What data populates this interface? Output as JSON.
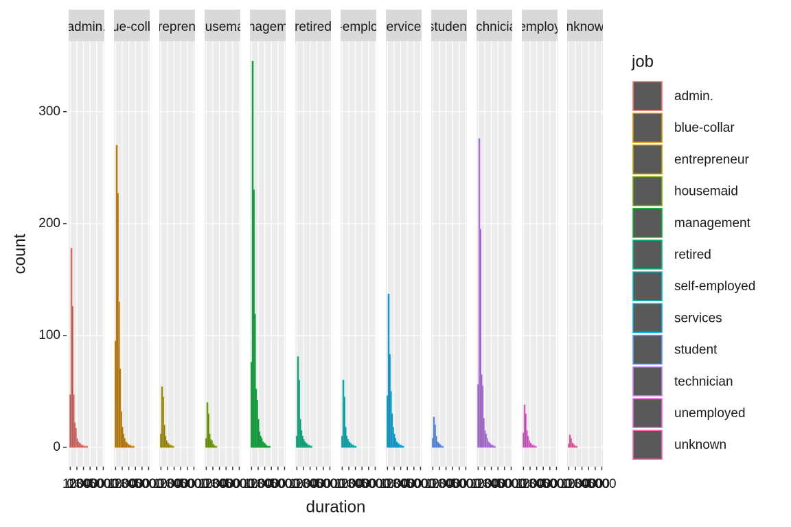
{
  "chart_data": {
    "type": "histogram",
    "x_label": "duration",
    "y_label": "count",
    "legend_title": "job",
    "bins": [
      -85,
      85,
      255,
      425,
      595,
      765,
      935,
      1105,
      1275,
      1445,
      1615,
      1785,
      1955,
      2125,
      2295,
      2465,
      2635,
      2805,
      2975,
      3145,
      3315,
      3485,
      3655,
      3825,
      3995,
      4165,
      4335,
      4505,
      4675,
      4845,
      5015
    ],
    "xlim": [
      -245,
      5163
    ],
    "xticks": [
      0,
      1000,
      2000,
      3000,
      4000,
      5000
    ],
    "ylim": [
      -17.2,
      363
    ],
    "yticks": [
      0,
      100,
      200,
      300
    ],
    "fill": "#595959",
    "grid": true,
    "legend_position": "right",
    "series": [
      {
        "name": "admin.",
        "color": "#F8766D",
        "values": [
          47,
          178,
          126,
          47,
          22,
          17,
          8,
          5,
          4,
          3,
          2,
          2,
          1,
          1,
          1,
          1,
          0,
          0,
          0,
          0,
          0,
          0,
          0,
          0,
          0,
          0,
          0,
          0,
          0,
          0
        ]
      },
      {
        "name": "blue-collar",
        "color": "#DE8C00",
        "values": [
          95,
          270,
          227,
          130,
          70,
          32,
          18,
          12,
          8,
          5,
          4,
          3,
          2,
          2,
          1,
          1,
          1,
          0,
          0,
          0,
          0,
          0,
          0,
          0,
          0,
          0,
          0,
          0,
          0,
          0
        ]
      },
      {
        "name": "entrepreneur",
        "color": "#B79F00",
        "values": [
          12,
          54,
          45,
          20,
          10,
          6,
          4,
          3,
          2,
          2,
          1,
          1,
          0,
          0,
          0,
          0,
          0,
          0,
          0,
          0,
          0,
          0,
          0,
          0,
          0,
          0,
          0,
          0,
          0,
          0
        ]
      },
      {
        "name": "housemaid",
        "color": "#7CAE00",
        "values": [
          8,
          40,
          30,
          12,
          7,
          6,
          3,
          2,
          1,
          1,
          0,
          0,
          0,
          0,
          0,
          0,
          0,
          0,
          0,
          0,
          0,
          0,
          0,
          0,
          0,
          0,
          0,
          0,
          0,
          0
        ]
      },
      {
        "name": "management",
        "color": "#00BA38",
        "values": [
          76,
          345,
          230,
          119,
          52,
          42,
          25,
          14,
          10,
          8,
          5,
          4,
          3,
          2,
          1,
          1,
          1,
          0,
          0,
          0,
          0,
          0,
          0,
          0,
          0,
          0,
          0,
          0,
          0,
          0
        ]
      },
      {
        "name": "retired",
        "color": "#00C08B",
        "values": [
          10,
          81,
          60,
          25,
          15,
          10,
          7,
          5,
          4,
          3,
          2,
          2,
          1,
          1,
          0,
          0,
          0,
          0,
          0,
          0,
          0,
          0,
          0,
          0,
          0,
          0,
          0,
          0,
          0,
          0
        ]
      },
      {
        "name": "self-employed",
        "color": "#00BFC4",
        "values": [
          10,
          60,
          45,
          18,
          10,
          7,
          5,
          4,
          3,
          2,
          2,
          1,
          1,
          0,
          0,
          0,
          0,
          0,
          0,
          0,
          0,
          0,
          0,
          0,
          0,
          0,
          0,
          0,
          0,
          0
        ]
      },
      {
        "name": "services",
        "color": "#00B4F0",
        "values": [
          46,
          137,
          83,
          50,
          30,
          18,
          12,
          8,
          5,
          4,
          3,
          2,
          2,
          1,
          1,
          0,
          0,
          0,
          0,
          0,
          0,
          0,
          0,
          0,
          0,
          0,
          0,
          0,
          0,
          0
        ]
      },
      {
        "name": "student",
        "color": "#619CFF",
        "values": [
          8,
          27,
          20,
          10,
          5,
          4,
          3,
          2,
          1,
          1,
          0,
          0,
          0,
          0,
          0,
          0,
          0,
          0,
          0,
          0,
          0,
          0,
          0,
          0,
          0,
          0,
          0,
          0,
          0,
          0
        ]
      },
      {
        "name": "technician",
        "color": "#C77CFF",
        "values": [
          56,
          276,
          195,
          65,
          55,
          26,
          15,
          12,
          8,
          5,
          4,
          3,
          2,
          2,
          1,
          1,
          0,
          0,
          0,
          0,
          0,
          0,
          0,
          0,
          0,
          0,
          0,
          0,
          0,
          0
        ]
      },
      {
        "name": "unemployed",
        "color": "#F564E3",
        "values": [
          13,
          38,
          30,
          15,
          10,
          6,
          4,
          3,
          2,
          2,
          1,
          1,
          0,
          0,
          0,
          0,
          0,
          0,
          0,
          0,
          0,
          0,
          0,
          0,
          0,
          0,
          0,
          0,
          0,
          0
        ]
      },
      {
        "name": "unknown",
        "color": "#FF64B0",
        "values": [
          3,
          11,
          8,
          4,
          3,
          2,
          1,
          1,
          0,
          0,
          0,
          0,
          0,
          0,
          0,
          0,
          0,
          0,
          0,
          0,
          0,
          0,
          0,
          0,
          0,
          0,
          0,
          0,
          0,
          0
        ]
      }
    ]
  }
}
